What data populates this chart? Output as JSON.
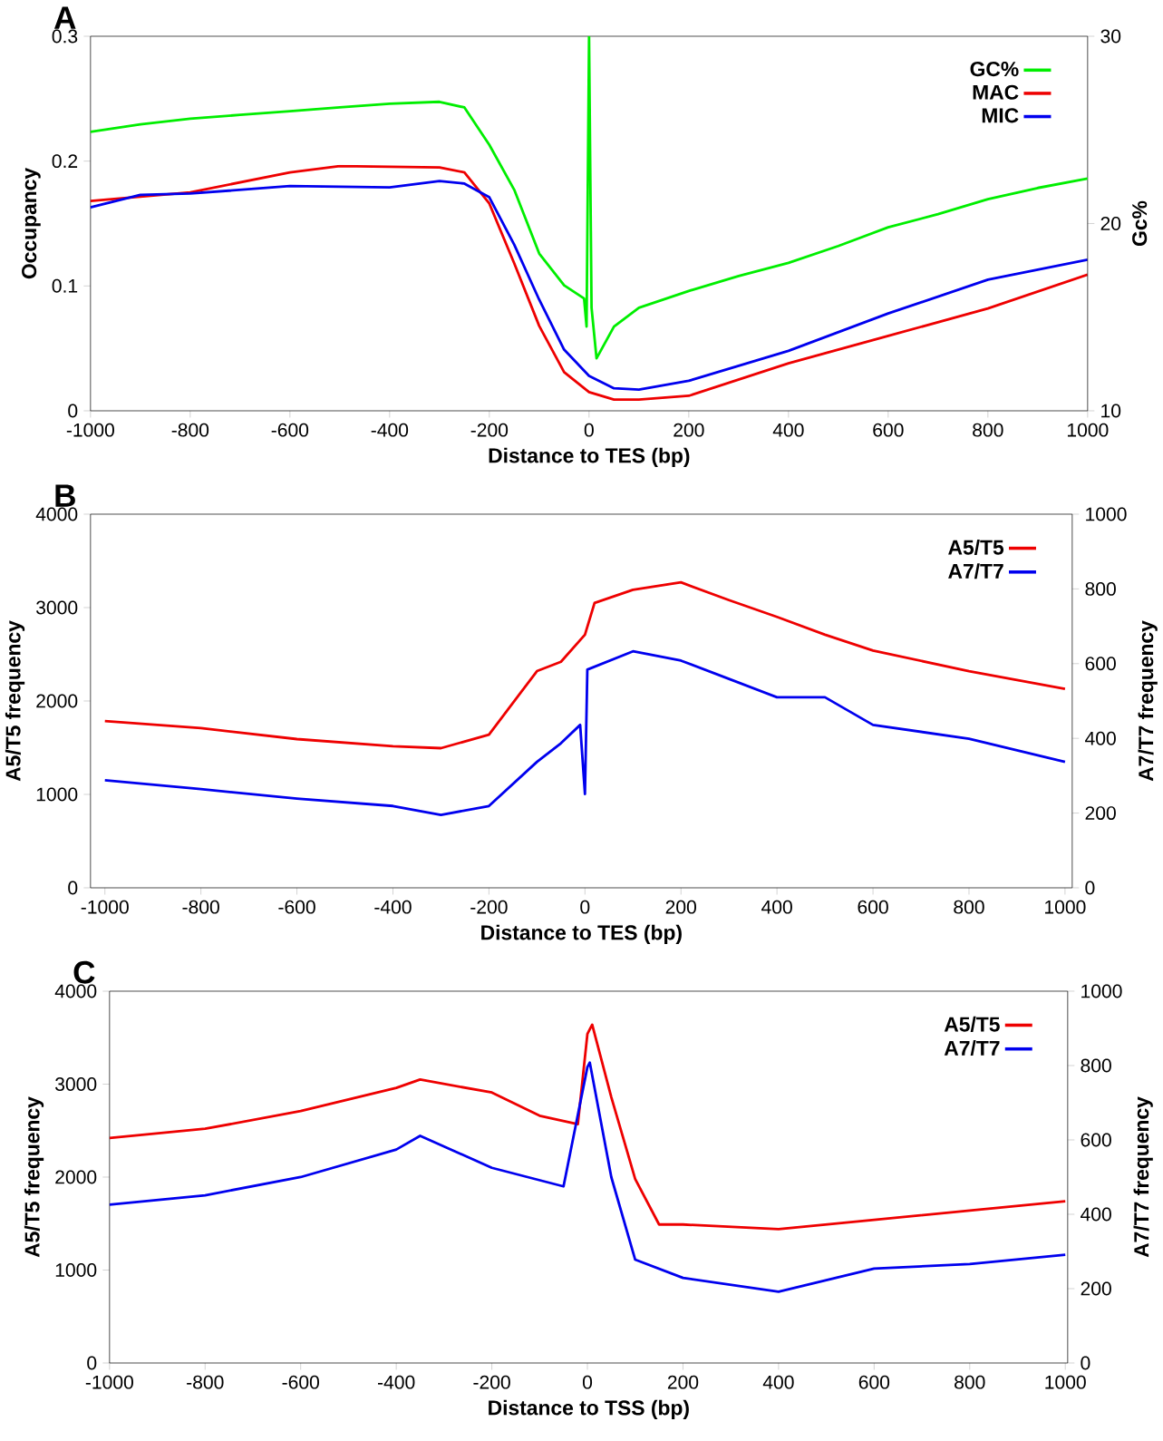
{
  "chart_data": [
    {
      "type": "line",
      "title": "A",
      "xlabel": "Distance to TES (bp)",
      "ylabel": "Occupancy",
      "y2label": "Gc%",
      "legend": "top right",
      "xlim": [
        -1000,
        1000
      ],
      "xticks": [
        -1000,
        -800,
        -600,
        -400,
        -200,
        0,
        200,
        400,
        600,
        800,
        1000
      ],
      "ylim": [
        0,
        0.3
      ],
      "yticks": [
        0,
        0.1,
        0.2,
        0.3
      ],
      "y2lim": [
        10,
        30
      ],
      "y2ticks": [
        10,
        20,
        30
      ],
      "series": [
        {
          "name": "GC%",
          "color": "#00ee00",
          "axis": "y2",
          "x": [
            -1000,
            -900,
            -800,
            -700,
            -600,
            -500,
            -400,
            -300,
            -250,
            -200,
            -150,
            -100,
            -50,
            -10,
            -5,
            0,
            5,
            15,
            50,
            100,
            200,
            300,
            400,
            500,
            600,
            700,
            800,
            900,
            1000
          ],
          "values": [
            24.9,
            25.3,
            25.6,
            25.8,
            26.0,
            26.2,
            26.4,
            26.5,
            26.2,
            24.2,
            21.8,
            18.4,
            16.7,
            16.0,
            14.5,
            30,
            15.5,
            12.8,
            14.5,
            15.5,
            16.4,
            17.2,
            17.9,
            18.8,
            19.8,
            20.5,
            21.3,
            21.9,
            22.4
          ]
        },
        {
          "name": "MAC",
          "color": "#ee0000",
          "x": [
            -1000,
            -800,
            -600,
            -500,
            -300,
            -250,
            -200,
            -150,
            -100,
            -50,
            0,
            50,
            100,
            200,
            400,
            600,
            800,
            1000
          ],
          "values": [
            0.168,
            0.175,
            0.191,
            0.196,
            0.195,
            0.191,
            0.166,
            0.118,
            0.068,
            0.031,
            0.015,
            0.009,
            0.009,
            0.012,
            0.038,
            0.06,
            0.082,
            0.109
          ]
        },
        {
          "name": "MIC",
          "color": "#0000ee",
          "x": [
            -1000,
            -900,
            -800,
            -600,
            -400,
            -300,
            -250,
            -200,
            -150,
            -100,
            -50,
            0,
            50,
            100,
            200,
            400,
            600,
            800,
            1000
          ],
          "values": [
            0.163,
            0.173,
            0.174,
            0.18,
            0.179,
            0.184,
            0.182,
            0.171,
            0.133,
            0.089,
            0.049,
            0.028,
            0.018,
            0.017,
            0.024,
            0.048,
            0.078,
            0.105,
            0.121
          ]
        }
      ]
    },
    {
      "type": "line",
      "title": "B",
      "xlabel": "Distance to TES (bp)",
      "ylabel": "A5/T5  frequency",
      "y2label": "A7/T7  frequency",
      "legend": "top right",
      "xlim": [
        -1030,
        1015
      ],
      "xticks": [
        -1000,
        -800,
        -600,
        -400,
        -200,
        0,
        200,
        400,
        600,
        800,
        1000
      ],
      "ylim": [
        0,
        4000
      ],
      "yticks": [
        0,
        1000,
        2000,
        3000,
        4000
      ],
      "y2lim": [
        0,
        1000
      ],
      "y2ticks": [
        0,
        200,
        400,
        600,
        800,
        1000
      ],
      "series": [
        {
          "name": "A5/T5",
          "color": "#ee0000",
          "x": [
            -1000,
            -800,
            -600,
            -400,
            -300,
            -200,
            -100,
            -50,
            0,
            20,
            100,
            200,
            300,
            400,
            500,
            600,
            800,
            1000
          ],
          "values": [
            1786,
            1709,
            1592,
            1515,
            1495,
            1640,
            2320,
            2420,
            2710,
            3050,
            3190,
            3270,
            3080,
            2900,
            2710,
            2540,
            2320,
            2130
          ]
        },
        {
          "name": "A7/T7",
          "color": "#0000ee",
          "axis": "y2",
          "x": [
            -1000,
            -800,
            -600,
            -400,
            -300,
            -200,
            -100,
            -50,
            -10,
            0,
            5,
            100,
            200,
            300,
            400,
            500,
            600,
            800,
            1000
          ],
          "values": [
            288,
            264,
            239,
            219,
            195,
            219,
            337,
            387,
            436,
            251,
            584,
            633,
            608,
            559,
            510,
            510,
            436,
            399,
            337
          ]
        }
      ]
    },
    {
      "type": "line",
      "title": "C",
      "xlabel": "Distance to TSS (bp)",
      "ylabel": "A5/T5  frequency",
      "y2label": "A7/T7  frequency",
      "legend": "top right",
      "xlim": [
        -1000,
        1005
      ],
      "xticks": [
        -1000,
        -800,
        -600,
        -400,
        -200,
        0,
        200,
        400,
        600,
        800,
        1000
      ],
      "ylim": [
        0,
        4000
      ],
      "yticks": [
        0,
        1000,
        2000,
        3000,
        4000
      ],
      "y2lim": [
        0,
        1000
      ],
      "y2ticks": [
        0,
        200,
        400,
        600,
        800,
        1000
      ],
      "series": [
        {
          "name": "A5/T5",
          "color": "#ee0000",
          "x": [
            -1000,
            -800,
            -600,
            -400,
            -350,
            -200,
            -100,
            -20,
            0,
            10,
            50,
            100,
            150,
            200,
            400,
            600,
            800,
            1000
          ],
          "values": [
            2420,
            2520,
            2710,
            2960,
            3050,
            2910,
            2660,
            2570,
            3540,
            3640,
            2860,
            1980,
            1490,
            1490,
            1440,
            1540,
            1640,
            1740
          ]
        },
        {
          "name": "A7/T7",
          "color": "#0000ee",
          "axis": "y2",
          "x": [
            -1000,
            -800,
            -600,
            -400,
            -350,
            -200,
            -50,
            0,
            5,
            50,
            100,
            200,
            400,
            600,
            800,
            1000
          ],
          "values": [
            426,
            451,
            500,
            574,
            611,
            525,
            475,
            796,
            808,
            500,
            278,
            229,
            192,
            254,
            266,
            291
          ]
        }
      ]
    }
  ]
}
